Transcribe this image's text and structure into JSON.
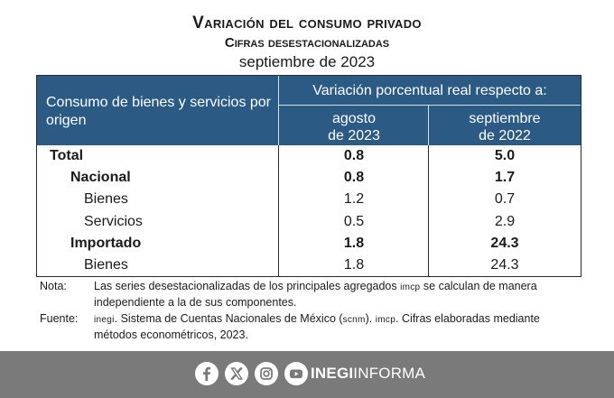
{
  "title": {
    "line1": "Variación del consumo privado",
    "line2": "Cifras desestacionalizadas",
    "line3": "septiembre de 2023"
  },
  "table": {
    "header_left": "Consumo de bienes y servicios por origen",
    "header_right": "Variación porcentual real respecto a:",
    "col1_line1": "agosto",
    "col1_line2": "de 2023",
    "col2_line1": "septiembre",
    "col2_line2": "de 2022",
    "rows": [
      {
        "label": "Total",
        "v1": "0.8",
        "v2": "5.0"
      },
      {
        "label": "Nacional",
        "v1": "0.8",
        "v2": "1.7"
      },
      {
        "label": "Bienes",
        "v1": "1.2",
        "v2": "0.7"
      },
      {
        "label": "Servicios",
        "v1": "0.5",
        "v2": "2.9"
      },
      {
        "label": "Importado",
        "v1": "1.8",
        "v2": "24.3"
      },
      {
        "label": "Bienes",
        "v1": "1.8",
        "v2": "24.3"
      }
    ]
  },
  "notes": {
    "nota_label": "Nota:",
    "nota_text_a": "Las series desestacionalizadas de los principales agregados ",
    "nota_abbr": "imcp",
    "nota_text_b": " se calculan de manera independiente a la de sus componentes.",
    "fuente_label": "Fuente:",
    "fuente_abbr1": "inegi",
    "fuente_text_a": ". Sistema de Cuentas Nacionales de México (",
    "fuente_abbr2": "scnm",
    "fuente_text_b": "). ",
    "fuente_abbr3": "imcp",
    "fuente_text_c": ". Cifras elaboradas mediante métodos econométricos, 2023."
  },
  "footer": {
    "brand_bold": "INEGI",
    "brand_light": "INFORMA",
    "icons": [
      "facebook-icon",
      "x-icon",
      "instagram-icon",
      "youtube-icon"
    ],
    "bg_color": "#7a7a7a"
  },
  "colors": {
    "header_bg": "#2b5a84"
  }
}
